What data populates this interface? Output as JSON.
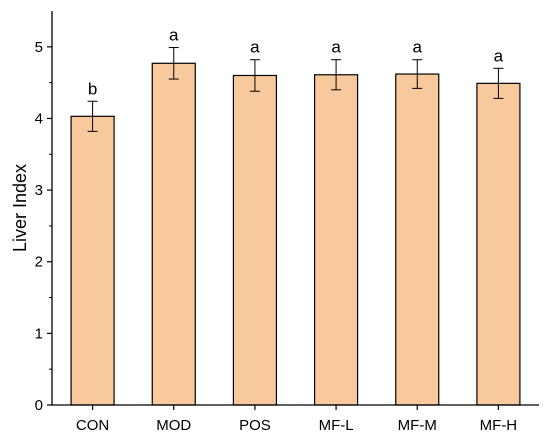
{
  "chart_data": {
    "type": "bar",
    "title": "",
    "xlabel": "",
    "ylabel": "Liver Index",
    "ylim": [
      0,
      5.5
    ],
    "yticks": [
      0,
      1,
      2,
      3,
      4,
      5
    ],
    "grid": false,
    "legend": "none",
    "categories": [
      "CON",
      "MOD",
      "POS",
      "MF-L",
      "MF-M",
      "MF-H"
    ],
    "series": [
      {
        "values": [
          4.03,
          4.77,
          4.6,
          4.61,
          4.62,
          4.49
        ],
        "errors": [
          0.21,
          0.22,
          0.22,
          0.21,
          0.2,
          0.21
        ],
        "significance": [
          "b",
          "a",
          "a",
          "a",
          "a",
          "a"
        ]
      }
    ],
    "colors": {
      "bar_fill": "#f8c99c",
      "bar_stroke": "#000000",
      "axis": "#000000"
    }
  }
}
